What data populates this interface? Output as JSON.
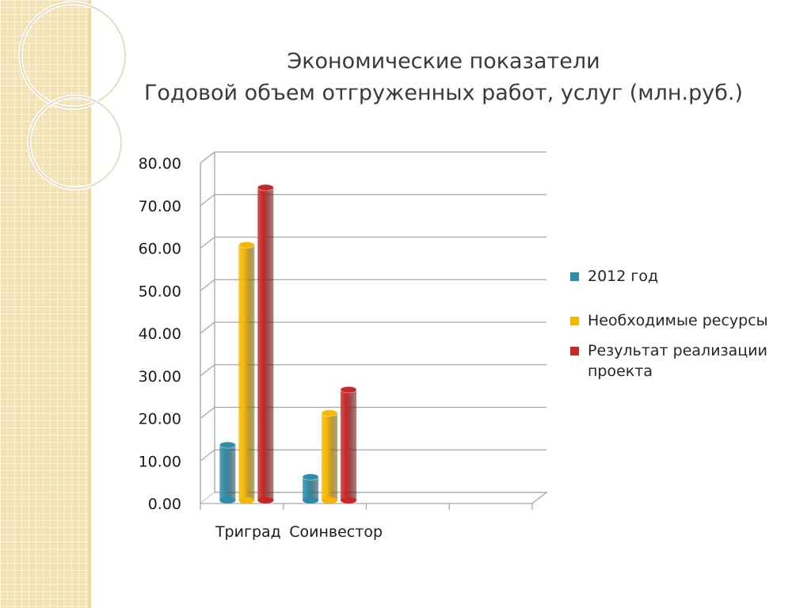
{
  "title": {
    "line1": "Экономические показатели",
    "line2": "Годовой объем отгруженных работ, услуг (млн.руб.)"
  },
  "chart_data": {
    "type": "bar",
    "categories": [
      "Триград",
      "Соинвестор",
      "",
      ""
    ],
    "series": [
      {
        "name": "2012 год",
        "values": [
          13,
          5.5,
          null,
          null
        ],
        "color": "#2e8ca8"
      },
      {
        "name": "Необходимые ресурсы",
        "values": [
          60,
          20.5,
          null,
          null
        ],
        "color": "#f5b800"
      },
      {
        "name": "Результат реализации проекта",
        "values": [
          73.5,
          26,
          null,
          null
        ],
        "color": "#c62828"
      }
    ],
    "ylim": [
      0,
      80
    ],
    "yticks": [
      "0.00",
      "10.00",
      "20.00",
      "30.00",
      "40.00",
      "50.00",
      "60.00",
      "70.00",
      "80.00"
    ],
    "grid": true,
    "legend": "right"
  },
  "colors": {
    "gridline": "#a6a6a6",
    "axis_text": "#1a1a1a",
    "title_text": "#3a3a3a"
  }
}
